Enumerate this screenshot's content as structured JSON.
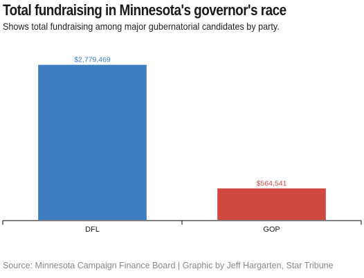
{
  "header": {
    "title": "Total fundraising in Minnesota's governor's race",
    "subtitle": "Shows total fundraising among major gubernatorial candidates by party."
  },
  "footer": {
    "source": "Source: Minnesota Campaign Finance Board | Graphic by Jeff Hargarten, Star Tribune"
  },
  "chart_data": {
    "type": "bar",
    "title": "Total fundraising in Minnesota's governor's race",
    "subtitle": "Shows total fundraising among major gubernatorial candidates by party.",
    "categories": [
      "DFL",
      "GOP"
    ],
    "values": [
      2779469,
      564541
    ],
    "value_labels": [
      "$2,779,469",
      "$564,541"
    ],
    "colors": [
      "#3e7fc1",
      "#d04840"
    ],
    "label_colors": [
      "#3e7fc1",
      "#d04840"
    ],
    "xlabel": "",
    "ylabel": "",
    "ylim": [
      0,
      2900000
    ],
    "grid": false,
    "legend": "none"
  }
}
